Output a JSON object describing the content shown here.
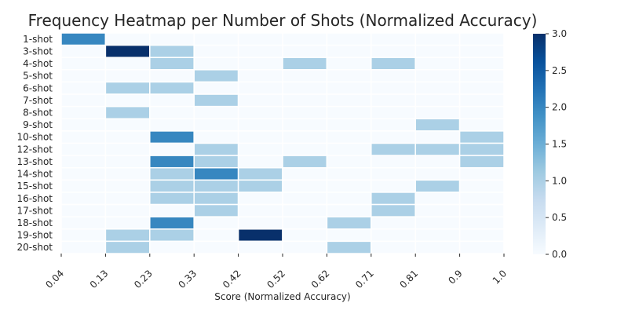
{
  "chart_data": {
    "type": "heatmap",
    "title": "Frequency Heatmap per Number of Shots (Normalized Accuracy)",
    "xlabel": "Score (Normalized Accuracy)",
    "ylabel": "",
    "x_tick_labels": [
      "0.04",
      "0.13",
      "0.23",
      "0.33",
      "0.42",
      "0.52",
      "0.62",
      "0.71",
      "0.81",
      "0.9",
      "1.0"
    ],
    "rows": [
      "1-shot",
      "3-shot",
      "4-shot",
      "5-shot",
      "6-shot",
      "7-shot",
      "8-shot",
      "9-shot",
      "10-shot",
      "12-shot",
      "13-shot",
      "14-shot",
      "15-shot",
      "16-shot",
      "17-shot",
      "18-shot",
      "19-shot",
      "20-shot"
    ],
    "values": [
      [
        2,
        0,
        0,
        0,
        0,
        0,
        0,
        0,
        0,
        0
      ],
      [
        0,
        3,
        1,
        0,
        0,
        0,
        0,
        0,
        0,
        0
      ],
      [
        0,
        0,
        1,
        0,
        0,
        1,
        0,
        1,
        0,
        0
      ],
      [
        0,
        0,
        0,
        1,
        0,
        0,
        0,
        0,
        0,
        0
      ],
      [
        0,
        1,
        1,
        0,
        0,
        0,
        0,
        0,
        0,
        0
      ],
      [
        0,
        0,
        0,
        1,
        0,
        0,
        0,
        0,
        0,
        0
      ],
      [
        0,
        1,
        0,
        0,
        0,
        0,
        0,
        0,
        0,
        0
      ],
      [
        0,
        0,
        0,
        0,
        0,
        0,
        0,
        0,
        1,
        0
      ],
      [
        0,
        0,
        2,
        0,
        0,
        0,
        0,
        0,
        0,
        1
      ],
      [
        0,
        0,
        0,
        1,
        0,
        0,
        0,
        1,
        1,
        1
      ],
      [
        0,
        0,
        2,
        1,
        0,
        1,
        0,
        0,
        0,
        1
      ],
      [
        0,
        0,
        1,
        2,
        1,
        0,
        0,
        0,
        0,
        0
      ],
      [
        0,
        0,
        1,
        1,
        1,
        0,
        0,
        0,
        1,
        0
      ],
      [
        0,
        0,
        1,
        1,
        0,
        0,
        0,
        1,
        0,
        0
      ],
      [
        0,
        0,
        0,
        1,
        0,
        0,
        0,
        1,
        0,
        0
      ],
      [
        0,
        0,
        2,
        0,
        0,
        0,
        1,
        0,
        0,
        0
      ],
      [
        0,
        1,
        1,
        0,
        3,
        0,
        0,
        0,
        0,
        0
      ],
      [
        0,
        1,
        0,
        0,
        0,
        0,
        1,
        0,
        0,
        0
      ]
    ],
    "colorbar": {
      "min": 0.0,
      "max": 3.0,
      "ticks": [
        "0.0",
        "0.5",
        "1.0",
        "1.5",
        "2.0",
        "2.5",
        "3.0"
      ],
      "colormap": "Blues"
    },
    "grid": false
  }
}
